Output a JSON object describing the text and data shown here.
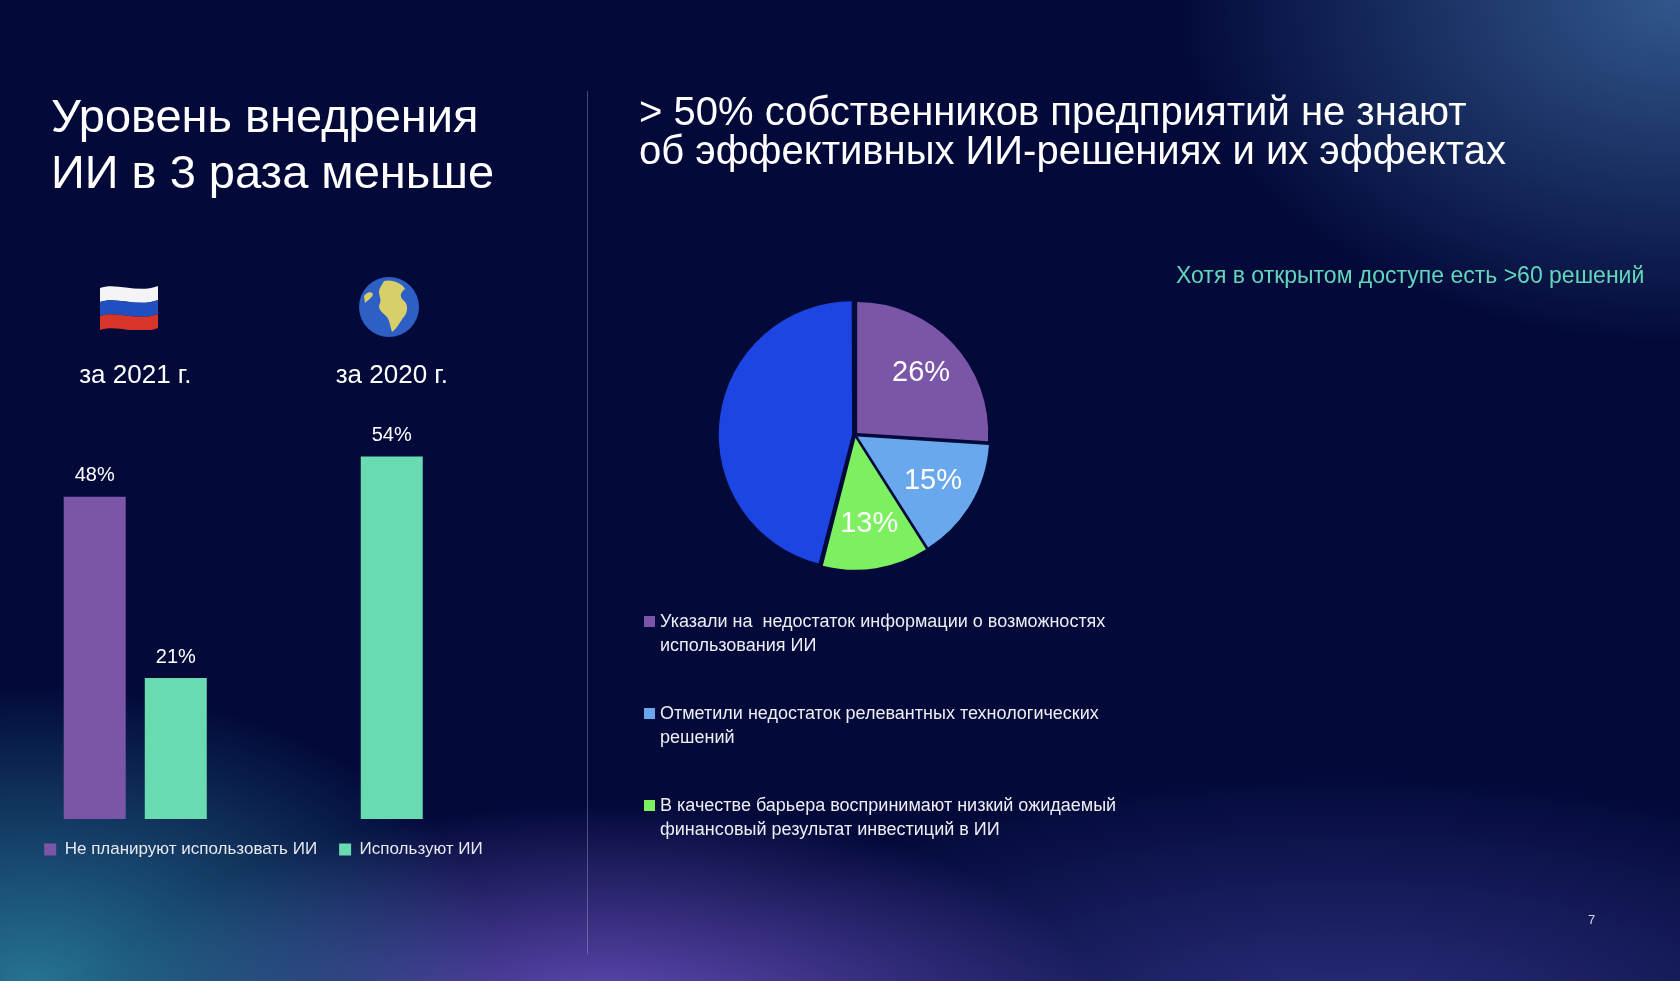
{
  "chart_data": [
    {
      "type": "bar",
      "title": "Уровень внедрения ИИ в 3 раза меньше",
      "categories": [
        "за 2021 г.",
        "за 2020 г."
      ],
      "series": [
        {
          "name": "Не планируют использовать ИИ",
          "color": "#7b55a8",
          "values": [
            48,
            null
          ],
          "value_labels": [
            "48%",
            null
          ]
        },
        {
          "name": "Используют ИИ",
          "color": "#6adbb0",
          "values": [
            21,
            54
          ],
          "value_labels": [
            "21%",
            "54%"
          ]
        }
      ],
      "legend": "bottom",
      "tick_labels": "x"
    },
    {
      "type": "pie",
      "title": "> 50% собственников предприятий не знают об эффективных ИИ-решениях и их эффектах",
      "categories": [
        "Указали на  недостаток информации о возможностях использования ИИ",
        "Отметили недостаток релевантных технологических решений",
        "В качестве барьера воспринимают низкий ожидаемый финансовый результат инвестиций в ИИ",
        null
      ],
      "values": [
        26,
        15,
        13,
        46
      ],
      "colors": [
        "#7b55a8",
        "#6aa8ee",
        "#7cf060",
        "#1d45e3"
      ],
      "value_labels": [
        "26%",
        "15%",
        "13%",
        null
      ],
      "legend": "bottom",
      "annotations": [
        "Хотя в открытом доступе есть >60 решений",
        "7"
      ]
    }
  ]
}
